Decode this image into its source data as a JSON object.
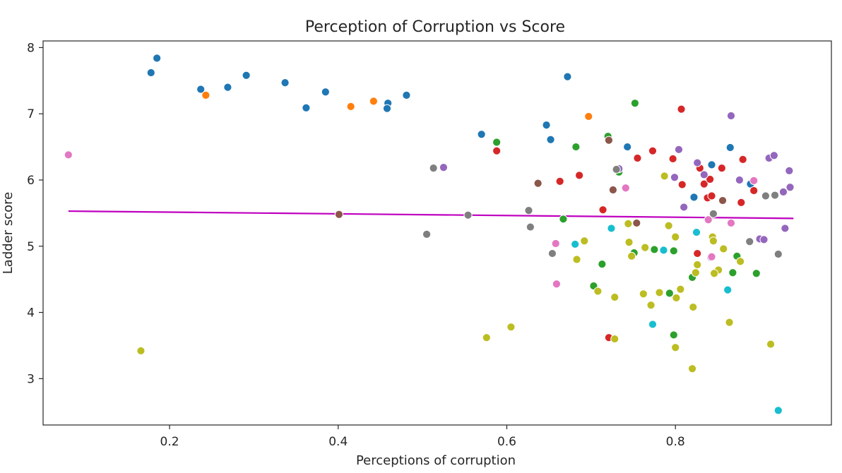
{
  "chart_data": {
    "type": "scatter",
    "title": "Perception of Corruption vs Score",
    "xlabel": "Perceptions of corruption",
    "ylabel": "Ladder score",
    "xlim": [
      0.05,
      0.985
    ],
    "ylim": [
      2.3,
      8.1
    ],
    "xticks": [
      0.2,
      0.4,
      0.6,
      0.8
    ],
    "xtick_labels": [
      "0.2",
      "0.4",
      "0.6",
      "0.8"
    ],
    "yticks": [
      3,
      4,
      5,
      6,
      7,
      8
    ],
    "ytick_labels": [
      "3",
      "4",
      "5",
      "6",
      "7",
      "8"
    ],
    "grid": false,
    "legend": "none",
    "point_edge_color": "#ffffff",
    "colors": {
      "blue": "#1f77b4",
      "orange": "#ff7f0e",
      "green": "#2ca02c",
      "red": "#d62728",
      "purple": "#9467bd",
      "brown": "#8c564b",
      "pink": "#e377c2",
      "gray": "#7f7f7f",
      "olive": "#bcbd22",
      "cyan": "#17becf"
    },
    "trend_line": {
      "color": "#bf00bf",
      "x": [
        0.08,
        0.94
      ],
      "y": [
        5.53,
        5.42
      ]
    },
    "points": [
      {
        "x": 0.185,
        "y": 7.84,
        "c": "blue"
      },
      {
        "x": 0.178,
        "y": 7.62,
        "c": "blue"
      },
      {
        "x": 0.237,
        "y": 7.37,
        "c": "blue"
      },
      {
        "x": 0.269,
        "y": 7.4,
        "c": "blue"
      },
      {
        "x": 0.291,
        "y": 7.58,
        "c": "blue"
      },
      {
        "x": 0.337,
        "y": 7.47,
        "c": "blue"
      },
      {
        "x": 0.362,
        "y": 7.09,
        "c": "blue"
      },
      {
        "x": 0.385,
        "y": 7.33,
        "c": "blue"
      },
      {
        "x": 0.459,
        "y": 7.16,
        "c": "blue"
      },
      {
        "x": 0.458,
        "y": 7.08,
        "c": "blue"
      },
      {
        "x": 0.481,
        "y": 7.28,
        "c": "blue"
      },
      {
        "x": 0.57,
        "y": 6.69,
        "c": "blue"
      },
      {
        "x": 0.647,
        "y": 6.83,
        "c": "blue"
      },
      {
        "x": 0.652,
        "y": 6.61,
        "c": "blue"
      },
      {
        "x": 0.672,
        "y": 7.56,
        "c": "blue"
      },
      {
        "x": 0.743,
        "y": 6.5,
        "c": "blue"
      },
      {
        "x": 0.843,
        "y": 6.23,
        "c": "blue"
      },
      {
        "x": 0.865,
        "y": 6.49,
        "c": "blue"
      },
      {
        "x": 0.889,
        "y": 5.94,
        "c": "blue"
      },
      {
        "x": 0.822,
        "y": 5.74,
        "c": "blue"
      },
      {
        "x": 0.243,
        "y": 7.28,
        "c": "orange"
      },
      {
        "x": 0.415,
        "y": 7.11,
        "c": "orange"
      },
      {
        "x": 0.442,
        "y": 7.19,
        "c": "orange"
      },
      {
        "x": 0.697,
        "y": 6.96,
        "c": "orange"
      },
      {
        "x": 0.588,
        "y": 6.57,
        "c": "green"
      },
      {
        "x": 0.682,
        "y": 6.5,
        "c": "green"
      },
      {
        "x": 0.72,
        "y": 6.66,
        "c": "green"
      },
      {
        "x": 0.752,
        "y": 7.16,
        "c": "green"
      },
      {
        "x": 0.733,
        "y": 6.12,
        "c": "green"
      },
      {
        "x": 0.667,
        "y": 5.41,
        "c": "green"
      },
      {
        "x": 0.703,
        "y": 4.4,
        "c": "green"
      },
      {
        "x": 0.713,
        "y": 4.73,
        "c": "green"
      },
      {
        "x": 0.751,
        "y": 4.9,
        "c": "green"
      },
      {
        "x": 0.775,
        "y": 4.95,
        "c": "green"
      },
      {
        "x": 0.798,
        "y": 4.93,
        "c": "green"
      },
      {
        "x": 0.793,
        "y": 4.29,
        "c": "green"
      },
      {
        "x": 0.798,
        "y": 3.66,
        "c": "green"
      },
      {
        "x": 0.82,
        "y": 4.53,
        "c": "green"
      },
      {
        "x": 0.873,
        "y": 4.85,
        "c": "green"
      },
      {
        "x": 0.868,
        "y": 4.6,
        "c": "green"
      },
      {
        "x": 0.896,
        "y": 4.59,
        "c": "green"
      },
      {
        "x": 0.588,
        "y": 6.44,
        "c": "red"
      },
      {
        "x": 0.663,
        "y": 5.98,
        "c": "red"
      },
      {
        "x": 0.686,
        "y": 6.07,
        "c": "red"
      },
      {
        "x": 0.755,
        "y": 6.33,
        "c": "red"
      },
      {
        "x": 0.773,
        "y": 6.44,
        "c": "red"
      },
      {
        "x": 0.797,
        "y": 6.32,
        "c": "red"
      },
      {
        "x": 0.807,
        "y": 7.07,
        "c": "red"
      },
      {
        "x": 0.808,
        "y": 5.93,
        "c": "red"
      },
      {
        "x": 0.829,
        "y": 6.18,
        "c": "red"
      },
      {
        "x": 0.834,
        "y": 5.94,
        "c": "red"
      },
      {
        "x": 0.841,
        "y": 6.01,
        "c": "red"
      },
      {
        "x": 0.838,
        "y": 5.73,
        "c": "red"
      },
      {
        "x": 0.843,
        "y": 5.76,
        "c": "red"
      },
      {
        "x": 0.855,
        "y": 6.18,
        "c": "red"
      },
      {
        "x": 0.88,
        "y": 6.31,
        "c": "red"
      },
      {
        "x": 0.893,
        "y": 5.84,
        "c": "red"
      },
      {
        "x": 0.878,
        "y": 5.66,
        "c": "red"
      },
      {
        "x": 0.714,
        "y": 5.55,
        "c": "red"
      },
      {
        "x": 0.721,
        "y": 3.62,
        "c": "red"
      },
      {
        "x": 0.826,
        "y": 4.89,
        "c": "red"
      },
      {
        "x": 0.525,
        "y": 6.19,
        "c": "purple"
      },
      {
        "x": 0.733,
        "y": 6.17,
        "c": "purple"
      },
      {
        "x": 0.804,
        "y": 6.46,
        "c": "purple"
      },
      {
        "x": 0.799,
        "y": 6.04,
        "c": "purple"
      },
      {
        "x": 0.826,
        "y": 6.26,
        "c": "purple"
      },
      {
        "x": 0.834,
        "y": 6.08,
        "c": "purple"
      },
      {
        "x": 0.81,
        "y": 5.59,
        "c": "purple"
      },
      {
        "x": 0.866,
        "y": 6.97,
        "c": "purple"
      },
      {
        "x": 0.876,
        "y": 6.0,
        "c": "purple"
      },
      {
        "x": 0.911,
        "y": 6.33,
        "c": "purple"
      },
      {
        "x": 0.917,
        "y": 6.37,
        "c": "purple"
      },
      {
        "x": 0.935,
        "y": 6.14,
        "c": "purple"
      },
      {
        "x": 0.928,
        "y": 5.82,
        "c": "purple"
      },
      {
        "x": 0.936,
        "y": 5.89,
        "c": "purple"
      },
      {
        "x": 0.9,
        "y": 5.11,
        "c": "purple"
      },
      {
        "x": 0.905,
        "y": 5.1,
        "c": "purple"
      },
      {
        "x": 0.93,
        "y": 5.27,
        "c": "purple"
      },
      {
        "x": 0.842,
        "y": 4.83,
        "c": "purple"
      },
      {
        "x": 0.637,
        "y": 5.95,
        "c": "brown"
      },
      {
        "x": 0.721,
        "y": 6.6,
        "c": "brown"
      },
      {
        "x": 0.726,
        "y": 5.85,
        "c": "brown"
      },
      {
        "x": 0.401,
        "y": 5.48,
        "c": "brown"
      },
      {
        "x": 0.754,
        "y": 5.35,
        "c": "brown"
      },
      {
        "x": 0.856,
        "y": 5.69,
        "c": "brown"
      },
      {
        "x": 0.08,
        "y": 6.38,
        "c": "pink"
      },
      {
        "x": 0.741,
        "y": 5.88,
        "c": "pink"
      },
      {
        "x": 0.658,
        "y": 5.04,
        "c": "pink"
      },
      {
        "x": 0.659,
        "y": 4.43,
        "c": "pink"
      },
      {
        "x": 0.866,
        "y": 5.35,
        "c": "pink"
      },
      {
        "x": 0.893,
        "y": 5.99,
        "c": "pink"
      },
      {
        "x": 0.839,
        "y": 5.4,
        "c": "pink"
      },
      {
        "x": 0.843,
        "y": 4.84,
        "c": "pink"
      },
      {
        "x": 0.513,
        "y": 6.18,
        "c": "gray"
      },
      {
        "x": 0.505,
        "y": 5.18,
        "c": "gray"
      },
      {
        "x": 0.554,
        "y": 5.47,
        "c": "gray"
      },
      {
        "x": 0.626,
        "y": 5.54,
        "c": "gray"
      },
      {
        "x": 0.628,
        "y": 5.29,
        "c": "gray"
      },
      {
        "x": 0.654,
        "y": 4.89,
        "c": "gray"
      },
      {
        "x": 0.73,
        "y": 6.16,
        "c": "gray"
      },
      {
        "x": 0.845,
        "y": 5.49,
        "c": "gray"
      },
      {
        "x": 0.888,
        "y": 5.07,
        "c": "gray"
      },
      {
        "x": 0.907,
        "y": 5.76,
        "c": "gray"
      },
      {
        "x": 0.918,
        "y": 5.77,
        "c": "gray"
      },
      {
        "x": 0.922,
        "y": 4.88,
        "c": "gray"
      },
      {
        "x": 0.166,
        "y": 3.42,
        "c": "olive"
      },
      {
        "x": 0.576,
        "y": 3.62,
        "c": "olive"
      },
      {
        "x": 0.605,
        "y": 3.78,
        "c": "olive"
      },
      {
        "x": 0.683,
        "y": 4.8,
        "c": "olive"
      },
      {
        "x": 0.692,
        "y": 5.08,
        "c": "olive"
      },
      {
        "x": 0.708,
        "y": 4.32,
        "c": "olive"
      },
      {
        "x": 0.728,
        "y": 4.23,
        "c": "olive"
      },
      {
        "x": 0.728,
        "y": 3.6,
        "c": "olive"
      },
      {
        "x": 0.744,
        "y": 5.34,
        "c": "olive"
      },
      {
        "x": 0.745,
        "y": 5.06,
        "c": "olive"
      },
      {
        "x": 0.748,
        "y": 4.85,
        "c": "olive"
      },
      {
        "x": 0.764,
        "y": 4.98,
        "c": "olive"
      },
      {
        "x": 0.762,
        "y": 4.28,
        "c": "olive"
      },
      {
        "x": 0.771,
        "y": 4.11,
        "c": "olive"
      },
      {
        "x": 0.781,
        "y": 4.3,
        "c": "olive"
      },
      {
        "x": 0.787,
        "y": 6.06,
        "c": "olive"
      },
      {
        "x": 0.792,
        "y": 5.31,
        "c": "olive"
      },
      {
        "x": 0.8,
        "y": 5.14,
        "c": "olive"
      },
      {
        "x": 0.801,
        "y": 4.22,
        "c": "olive"
      },
      {
        "x": 0.806,
        "y": 4.35,
        "c": "olive"
      },
      {
        "x": 0.8,
        "y": 3.47,
        "c": "olive"
      },
      {
        "x": 0.821,
        "y": 4.08,
        "c": "olive"
      },
      {
        "x": 0.82,
        "y": 3.15,
        "c": "olive"
      },
      {
        "x": 0.824,
        "y": 4.6,
        "c": "olive"
      },
      {
        "x": 0.826,
        "y": 4.72,
        "c": "olive"
      },
      {
        "x": 0.844,
        "y": 5.14,
        "c": "olive"
      },
      {
        "x": 0.845,
        "y": 5.08,
        "c": "olive"
      },
      {
        "x": 0.851,
        "y": 4.64,
        "c": "olive"
      },
      {
        "x": 0.846,
        "y": 4.59,
        "c": "olive"
      },
      {
        "x": 0.857,
        "y": 4.96,
        "c": "olive"
      },
      {
        "x": 0.864,
        "y": 3.85,
        "c": "olive"
      },
      {
        "x": 0.877,
        "y": 4.77,
        "c": "olive"
      },
      {
        "x": 0.913,
        "y": 3.52,
        "c": "olive"
      },
      {
        "x": 0.681,
        "y": 5.03,
        "c": "cyan"
      },
      {
        "x": 0.724,
        "y": 5.27,
        "c": "cyan"
      },
      {
        "x": 0.773,
        "y": 3.82,
        "c": "cyan"
      },
      {
        "x": 0.786,
        "y": 4.94,
        "c": "cyan"
      },
      {
        "x": 0.825,
        "y": 5.21,
        "c": "cyan"
      },
      {
        "x": 0.862,
        "y": 4.34,
        "c": "cyan"
      },
      {
        "x": 0.922,
        "y": 2.52,
        "c": "cyan"
      }
    ]
  }
}
